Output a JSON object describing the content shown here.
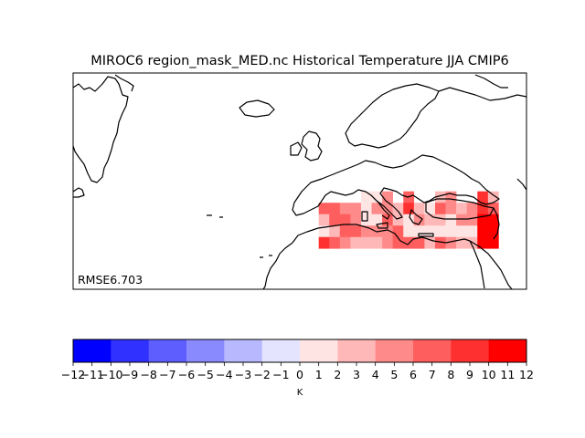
{
  "title": "MIROC6 region_mask_MED.nc Historical Temperature JJA CMIP6",
  "annotation": "RMSE6.703",
  "colorbar": {
    "unit": "K",
    "ticks": [
      "−12",
      "−11",
      "−10",
      "−9",
      "−8",
      "−7",
      "−6",
      "−5",
      "−4",
      "−3",
      "−2",
      "−1",
      "0",
      "1",
      "2",
      "3",
      "4",
      "5",
      "6",
      "7",
      "8",
      "9",
      "10",
      "11",
      "12"
    ],
    "colors": [
      "#0000ff",
      "#3030ff",
      "#5e5eff",
      "#8a8aff",
      "#b8b8ff",
      "#e4e4ff",
      "#ffe4e4",
      "#ffb8b8",
      "#ff8a8a",
      "#ff5e5e",
      "#ff3030",
      "#ff0000"
    ]
  },
  "chart_data": {
    "type": "heatmap",
    "title": "MIROC6 region_mask_MED.nc Historical Temperature JJA CMIP6",
    "colorbar_label": "K",
    "colorbar_range": [
      -12,
      12
    ],
    "colorbar_step": 2,
    "map_extent": {
      "lon": [
        -75,
        45
      ],
      "lat": [
        20,
        73
      ]
    },
    "annotation": "RMSE6.703",
    "cell_size_deg": 2.8,
    "grid_origin": {
      "lon": -10,
      "lat": 30
    },
    "cells": [
      {
        "i": 4,
        "j": 4,
        "v": 1
      },
      {
        "i": 5,
        "j": 4,
        "v": 1
      },
      {
        "i": 6,
        "j": 4,
        "v": 4
      },
      {
        "i": 8,
        "j": 4,
        "v": 6
      },
      {
        "i": 11,
        "j": 4,
        "v": 3
      },
      {
        "i": 12,
        "j": 4,
        "v": 5
      },
      {
        "i": 15,
        "j": 4,
        "v": 8
      },
      {
        "i": 16,
        "j": 4,
        "v": 3
      },
      {
        "i": 0,
        "j": 3,
        "v": 7
      },
      {
        "i": 1,
        "j": 3,
        "v": 7
      },
      {
        "i": 2,
        "j": 3,
        "v": 5
      },
      {
        "i": 3,
        "j": 3,
        "v": 5
      },
      {
        "i": 4,
        "j": 3,
        "v": 1
      },
      {
        "i": 5,
        "j": 3,
        "v": 5
      },
      {
        "i": 6,
        "j": 3,
        "v": 5
      },
      {
        "i": 7,
        "j": 3,
        "v": 3
      },
      {
        "i": 8,
        "j": 3,
        "v": 8
      },
      {
        "i": 9,
        "j": 3,
        "v": 3
      },
      {
        "i": 10,
        "j": 3,
        "v": 1
      },
      {
        "i": 11,
        "j": 3,
        "v": 6
      },
      {
        "i": 12,
        "j": 3,
        "v": 5
      },
      {
        "i": 13,
        "j": 3,
        "v": 3
      },
      {
        "i": 14,
        "j": 3,
        "v": 5
      },
      {
        "i": 15,
        "j": 3,
        "v": 8
      },
      {
        "i": 16,
        "j": 3,
        "v": 6
      },
      {
        "i": 0,
        "j": 2,
        "v": 3
      },
      {
        "i": 1,
        "j": 2,
        "v": 7
      },
      {
        "i": 2,
        "j": 2,
        "v": 7
      },
      {
        "i": 3,
        "j": 2,
        "v": 5
      },
      {
        "i": 4,
        "j": 2,
        "v": 1
      },
      {
        "i": 5,
        "j": 2,
        "v": 1
      },
      {
        "i": 6,
        "j": 2,
        "v": 7
      },
      {
        "i": 7,
        "j": 2,
        "v": 3
      },
      {
        "i": 8,
        "j": 2,
        "v": 1
      },
      {
        "i": 9,
        "j": 2,
        "v": 5
      },
      {
        "i": 10,
        "j": 2,
        "v": 3
      },
      {
        "i": 11,
        "j": 2,
        "v": 3
      },
      {
        "i": 12,
        "j": 2,
        "v": 1
      },
      {
        "i": 13,
        "j": 2,
        "v": 5
      },
      {
        "i": 14,
        "j": 2,
        "v": 5
      },
      {
        "i": 15,
        "j": 2,
        "v": 10
      },
      {
        "i": 16,
        "j": 2,
        "v": 11
      },
      {
        "i": 0,
        "j": 1,
        "v": 1
      },
      {
        "i": 1,
        "j": 1,
        "v": 3
      },
      {
        "i": 2,
        "j": 1,
        "v": 6
      },
      {
        "i": 3,
        "j": 1,
        "v": 6
      },
      {
        "i": 4,
        "j": 1,
        "v": 5
      },
      {
        "i": 5,
        "j": 1,
        "v": 5
      },
      {
        "i": 6,
        "j": 1,
        "v": 5
      },
      {
        "i": 7,
        "j": 1,
        "v": 6
      },
      {
        "i": 8,
        "j": 1,
        "v": 1
      },
      {
        "i": 9,
        "j": 1,
        "v": 1
      },
      {
        "i": 10,
        "j": 1,
        "v": 1
      },
      {
        "i": 11,
        "j": 1,
        "v": 1
      },
      {
        "i": 12,
        "j": 1,
        "v": 1
      },
      {
        "i": 13,
        "j": 1,
        "v": 1
      },
      {
        "i": 14,
        "j": 1,
        "v": 1
      },
      {
        "i": 15,
        "j": 1,
        "v": 11
      },
      {
        "i": 16,
        "j": 1,
        "v": 11
      },
      {
        "i": 0,
        "j": 0,
        "v": 9
      },
      {
        "i": 1,
        "j": 0,
        "v": 7
      },
      {
        "i": 2,
        "j": 0,
        "v": 5
      },
      {
        "i": 3,
        "j": 0,
        "v": 3
      },
      {
        "i": 4,
        "j": 0,
        "v": 3
      },
      {
        "i": 5,
        "j": 0,
        "v": 3
      },
      {
        "i": 6,
        "j": 0,
        "v": 5
      },
      {
        "i": 7,
        "j": 0,
        "v": 6
      },
      {
        "i": 8,
        "j": 0,
        "v": 7
      },
      {
        "i": 9,
        "j": 0,
        "v": 7
      },
      {
        "i": 10,
        "j": 0,
        "v": 3
      },
      {
        "i": 11,
        "j": 0,
        "v": 6
      },
      {
        "i": 12,
        "j": 0,
        "v": 5
      },
      {
        "i": 13,
        "j": 0,
        "v": 3
      },
      {
        "i": 14,
        "j": 0,
        "v": 3
      },
      {
        "i": 15,
        "j": 0,
        "v": 11
      },
      {
        "i": 16,
        "j": 0,
        "v": 11
      }
    ]
  }
}
